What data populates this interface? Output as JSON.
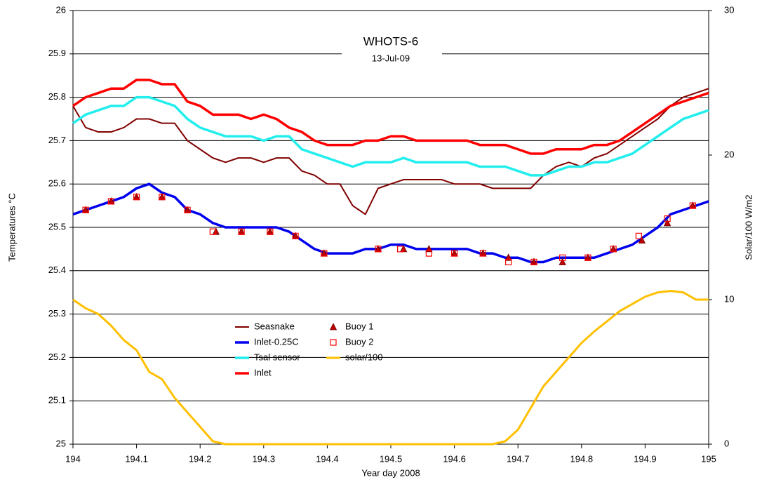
{
  "chart_data": {
    "type": "line",
    "title": "WHOTS-6",
    "subtitle": "13-Jul-09",
    "x_label": "Year day 2008",
    "y_label": "Temperatures °C",
    "y2_label": "Solar/100 W/m2",
    "xlim": [
      194,
      195
    ],
    "xticks": [
      194,
      194.1,
      194.2,
      194.3,
      194.4,
      194.5,
      194.6,
      194.7,
      194.8,
      194.9,
      195
    ],
    "ylim": [
      25,
      26
    ],
    "yticks": [
      25,
      25.1,
      25.2,
      25.3,
      25.4,
      25.5,
      25.6,
      25.7,
      25.8,
      25.9,
      26
    ],
    "y2lim": [
      0,
      30
    ],
    "y2ticks": [
      0,
      10,
      20,
      30
    ],
    "grid": true,
    "legend": "bottom-center",
    "series": [
      {
        "name": "Seasnake",
        "color": "#800000",
        "type": "line",
        "x": [
          194,
          194.02,
          194.04,
          194.06,
          194.08,
          194.1,
          194.12,
          194.14,
          194.16,
          194.18,
          194.2,
          194.22,
          194.24,
          194.26,
          194.28,
          194.3,
          194.32,
          194.34,
          194.36,
          194.38,
          194.4,
          194.42,
          194.44,
          194.46,
          194.48,
          194.5,
          194.52,
          194.54,
          194.56,
          194.58,
          194.6,
          194.62,
          194.64,
          194.66,
          194.68,
          194.7,
          194.72,
          194.74,
          194.76,
          194.78,
          194.8,
          194.82,
          194.84,
          194.86,
          194.88,
          194.9,
          194.92,
          194.94,
          194.96,
          194.98,
          195
        ],
        "values": [
          25.78,
          25.73,
          25.72,
          25.72,
          25.73,
          25.75,
          25.75,
          25.74,
          25.74,
          25.7,
          25.68,
          25.66,
          25.65,
          25.66,
          25.66,
          25.65,
          25.66,
          25.66,
          25.63,
          25.62,
          25.6,
          25.6,
          25.55,
          25.53,
          25.59,
          25.6,
          25.61,
          25.61,
          25.61,
          25.61,
          25.6,
          25.6,
          25.6,
          25.59,
          25.59,
          25.59,
          25.59,
          25.62,
          25.64,
          25.65,
          25.64,
          25.66,
          25.67,
          25.69,
          25.71,
          25.73,
          25.75,
          25.78,
          25.8,
          25.81,
          25.82
        ]
      },
      {
        "name": "Inlet-0.25C",
        "color": "#0000ee",
        "type": "line",
        "x": [
          194,
          194.02,
          194.04,
          194.06,
          194.08,
          194.1,
          194.12,
          194.14,
          194.16,
          194.18,
          194.2,
          194.22,
          194.24,
          194.26,
          194.28,
          194.3,
          194.32,
          194.34,
          194.36,
          194.38,
          194.4,
          194.42,
          194.44,
          194.46,
          194.48,
          194.5,
          194.52,
          194.54,
          194.56,
          194.58,
          194.6,
          194.62,
          194.64,
          194.66,
          194.68,
          194.7,
          194.72,
          194.74,
          194.76,
          194.78,
          194.8,
          194.82,
          194.84,
          194.86,
          194.88,
          194.9,
          194.92,
          194.94,
          194.96,
          194.98,
          195
        ],
        "values": [
          25.53,
          25.54,
          25.55,
          25.56,
          25.57,
          25.59,
          25.6,
          25.58,
          25.57,
          25.54,
          25.53,
          25.51,
          25.5,
          25.5,
          25.5,
          25.5,
          25.5,
          25.49,
          25.47,
          25.45,
          25.44,
          25.44,
          25.44,
          25.45,
          25.45,
          25.46,
          25.46,
          25.45,
          25.45,
          25.45,
          25.45,
          25.45,
          25.44,
          25.44,
          25.43,
          25.43,
          25.42,
          25.42,
          25.43,
          25.43,
          25.43,
          25.43,
          25.44,
          25.45,
          25.46,
          25.48,
          25.5,
          25.53,
          25.54,
          25.55,
          25.56
        ]
      },
      {
        "name": "Tsal sensor",
        "color": "#22eeee",
        "type": "line",
        "x": [
          194,
          194.02,
          194.04,
          194.06,
          194.08,
          194.1,
          194.12,
          194.14,
          194.16,
          194.18,
          194.2,
          194.22,
          194.24,
          194.26,
          194.28,
          194.3,
          194.32,
          194.34,
          194.36,
          194.38,
          194.4,
          194.42,
          194.44,
          194.46,
          194.48,
          194.5,
          194.52,
          194.54,
          194.56,
          194.58,
          194.6,
          194.62,
          194.64,
          194.66,
          194.68,
          194.7,
          194.72,
          194.74,
          194.76,
          194.78,
          194.8,
          194.82,
          194.84,
          194.86,
          194.88,
          194.9,
          194.92,
          194.94,
          194.96,
          194.98,
          195
        ],
        "values": [
          25.74,
          25.76,
          25.77,
          25.78,
          25.78,
          25.8,
          25.8,
          25.79,
          25.78,
          25.75,
          25.73,
          25.72,
          25.71,
          25.71,
          25.71,
          25.7,
          25.71,
          25.71,
          25.68,
          25.67,
          25.66,
          25.65,
          25.64,
          25.65,
          25.65,
          25.65,
          25.66,
          25.65,
          25.65,
          25.65,
          25.65,
          25.65,
          25.64,
          25.64,
          25.64,
          25.63,
          25.62,
          25.62,
          25.63,
          25.64,
          25.64,
          25.65,
          25.65,
          25.66,
          25.67,
          25.69,
          25.71,
          25.73,
          25.75,
          25.76,
          25.77
        ]
      },
      {
        "name": "Inlet",
        "color": "#ff0000",
        "type": "line",
        "x": [
          194,
          194.02,
          194.04,
          194.06,
          194.08,
          194.1,
          194.12,
          194.14,
          194.16,
          194.18,
          194.2,
          194.22,
          194.24,
          194.26,
          194.28,
          194.3,
          194.32,
          194.34,
          194.36,
          194.38,
          194.4,
          194.42,
          194.44,
          194.46,
          194.48,
          194.5,
          194.52,
          194.54,
          194.56,
          194.58,
          194.6,
          194.62,
          194.64,
          194.66,
          194.68,
          194.7,
          194.72,
          194.74,
          194.76,
          194.78,
          194.8,
          194.82,
          194.84,
          194.86,
          194.88,
          194.9,
          194.92,
          194.94,
          194.96,
          194.98,
          195
        ],
        "values": [
          25.78,
          25.8,
          25.81,
          25.82,
          25.82,
          25.84,
          25.84,
          25.83,
          25.83,
          25.79,
          25.78,
          25.76,
          25.76,
          25.76,
          25.75,
          25.76,
          25.75,
          25.73,
          25.72,
          25.7,
          25.69,
          25.69,
          25.69,
          25.7,
          25.7,
          25.71,
          25.71,
          25.7,
          25.7,
          25.7,
          25.7,
          25.7,
          25.69,
          25.69,
          25.69,
          25.68,
          25.67,
          25.67,
          25.68,
          25.68,
          25.68,
          25.69,
          25.69,
          25.7,
          25.72,
          25.74,
          25.76,
          25.78,
          25.79,
          25.8,
          25.81
        ]
      },
      {
        "name": "Buoy 1",
        "color": "#c00000",
        "type": "scatter",
        "marker": "triangle",
        "x": [
          194.02,
          194.06,
          194.1,
          194.14,
          194.18,
          194.225,
          194.265,
          194.31,
          194.35,
          194.395,
          194.48,
          194.52,
          194.56,
          194.6,
          194.645,
          194.685,
          194.725,
          194.77,
          194.81,
          194.85,
          194.895,
          194.935,
          194.975
        ],
        "values": [
          25.54,
          25.56,
          25.57,
          25.57,
          25.54,
          25.49,
          25.49,
          25.49,
          25.48,
          25.44,
          25.45,
          25.45,
          25.45,
          25.44,
          25.44,
          25.43,
          25.42,
          25.42,
          25.43,
          25.45,
          25.47,
          25.51,
          25.55
        ]
      },
      {
        "name": "Buoy 2",
        "color": "#ff0000",
        "type": "scatter",
        "marker": "square",
        "x": [
          194.02,
          194.06,
          194.1,
          194.14,
          194.18,
          194.22,
          194.265,
          194.31,
          194.35,
          194.395,
          194.48,
          194.515,
          194.56,
          194.6,
          194.645,
          194.685,
          194.725,
          194.77,
          194.81,
          194.85,
          194.89,
          194.935,
          194.975
        ],
        "values": [
          25.54,
          25.56,
          25.57,
          25.57,
          25.54,
          25.49,
          25.49,
          25.49,
          25.48,
          25.44,
          25.45,
          25.45,
          25.44,
          25.44,
          25.44,
          25.42,
          25.42,
          25.43,
          25.43,
          25.45,
          25.48,
          25.52,
          25.55
        ]
      },
      {
        "name": "solar/100",
        "color": "#ffc000",
        "type": "line",
        "axis": "y2",
        "x": [
          194,
          194.02,
          194.04,
          194.06,
          194.08,
          194.1,
          194.12,
          194.14,
          194.16,
          194.18,
          194.2,
          194.22,
          194.24,
          194.26,
          194.28,
          194.3,
          194.32,
          194.34,
          194.36,
          194.38,
          194.4,
          194.42,
          194.44,
          194.46,
          194.48,
          194.5,
          194.52,
          194.54,
          194.56,
          194.58,
          194.6,
          194.62,
          194.64,
          194.66,
          194.68,
          194.7,
          194.72,
          194.74,
          194.76,
          194.78,
          194.8,
          194.82,
          194.84,
          194.86,
          194.88,
          194.9,
          194.92,
          194.94,
          194.96,
          194.98,
          195
        ],
        "values": [
          10,
          9.4,
          9,
          8.2,
          7.2,
          6.5,
          5,
          4.5,
          3.2,
          2.2,
          1.2,
          0.2,
          0,
          0,
          0,
          0,
          0,
          0,
          0,
          0,
          0,
          0,
          0,
          0,
          0,
          0,
          0,
          0,
          0,
          0,
          0,
          0,
          0,
          0,
          0.2,
          1,
          2.5,
          4,
          5,
          6,
          7,
          7.8,
          8.5,
          9.2,
          9.7,
          10.2,
          10.5,
          10.6,
          10.5,
          10,
          10
        ]
      }
    ]
  }
}
